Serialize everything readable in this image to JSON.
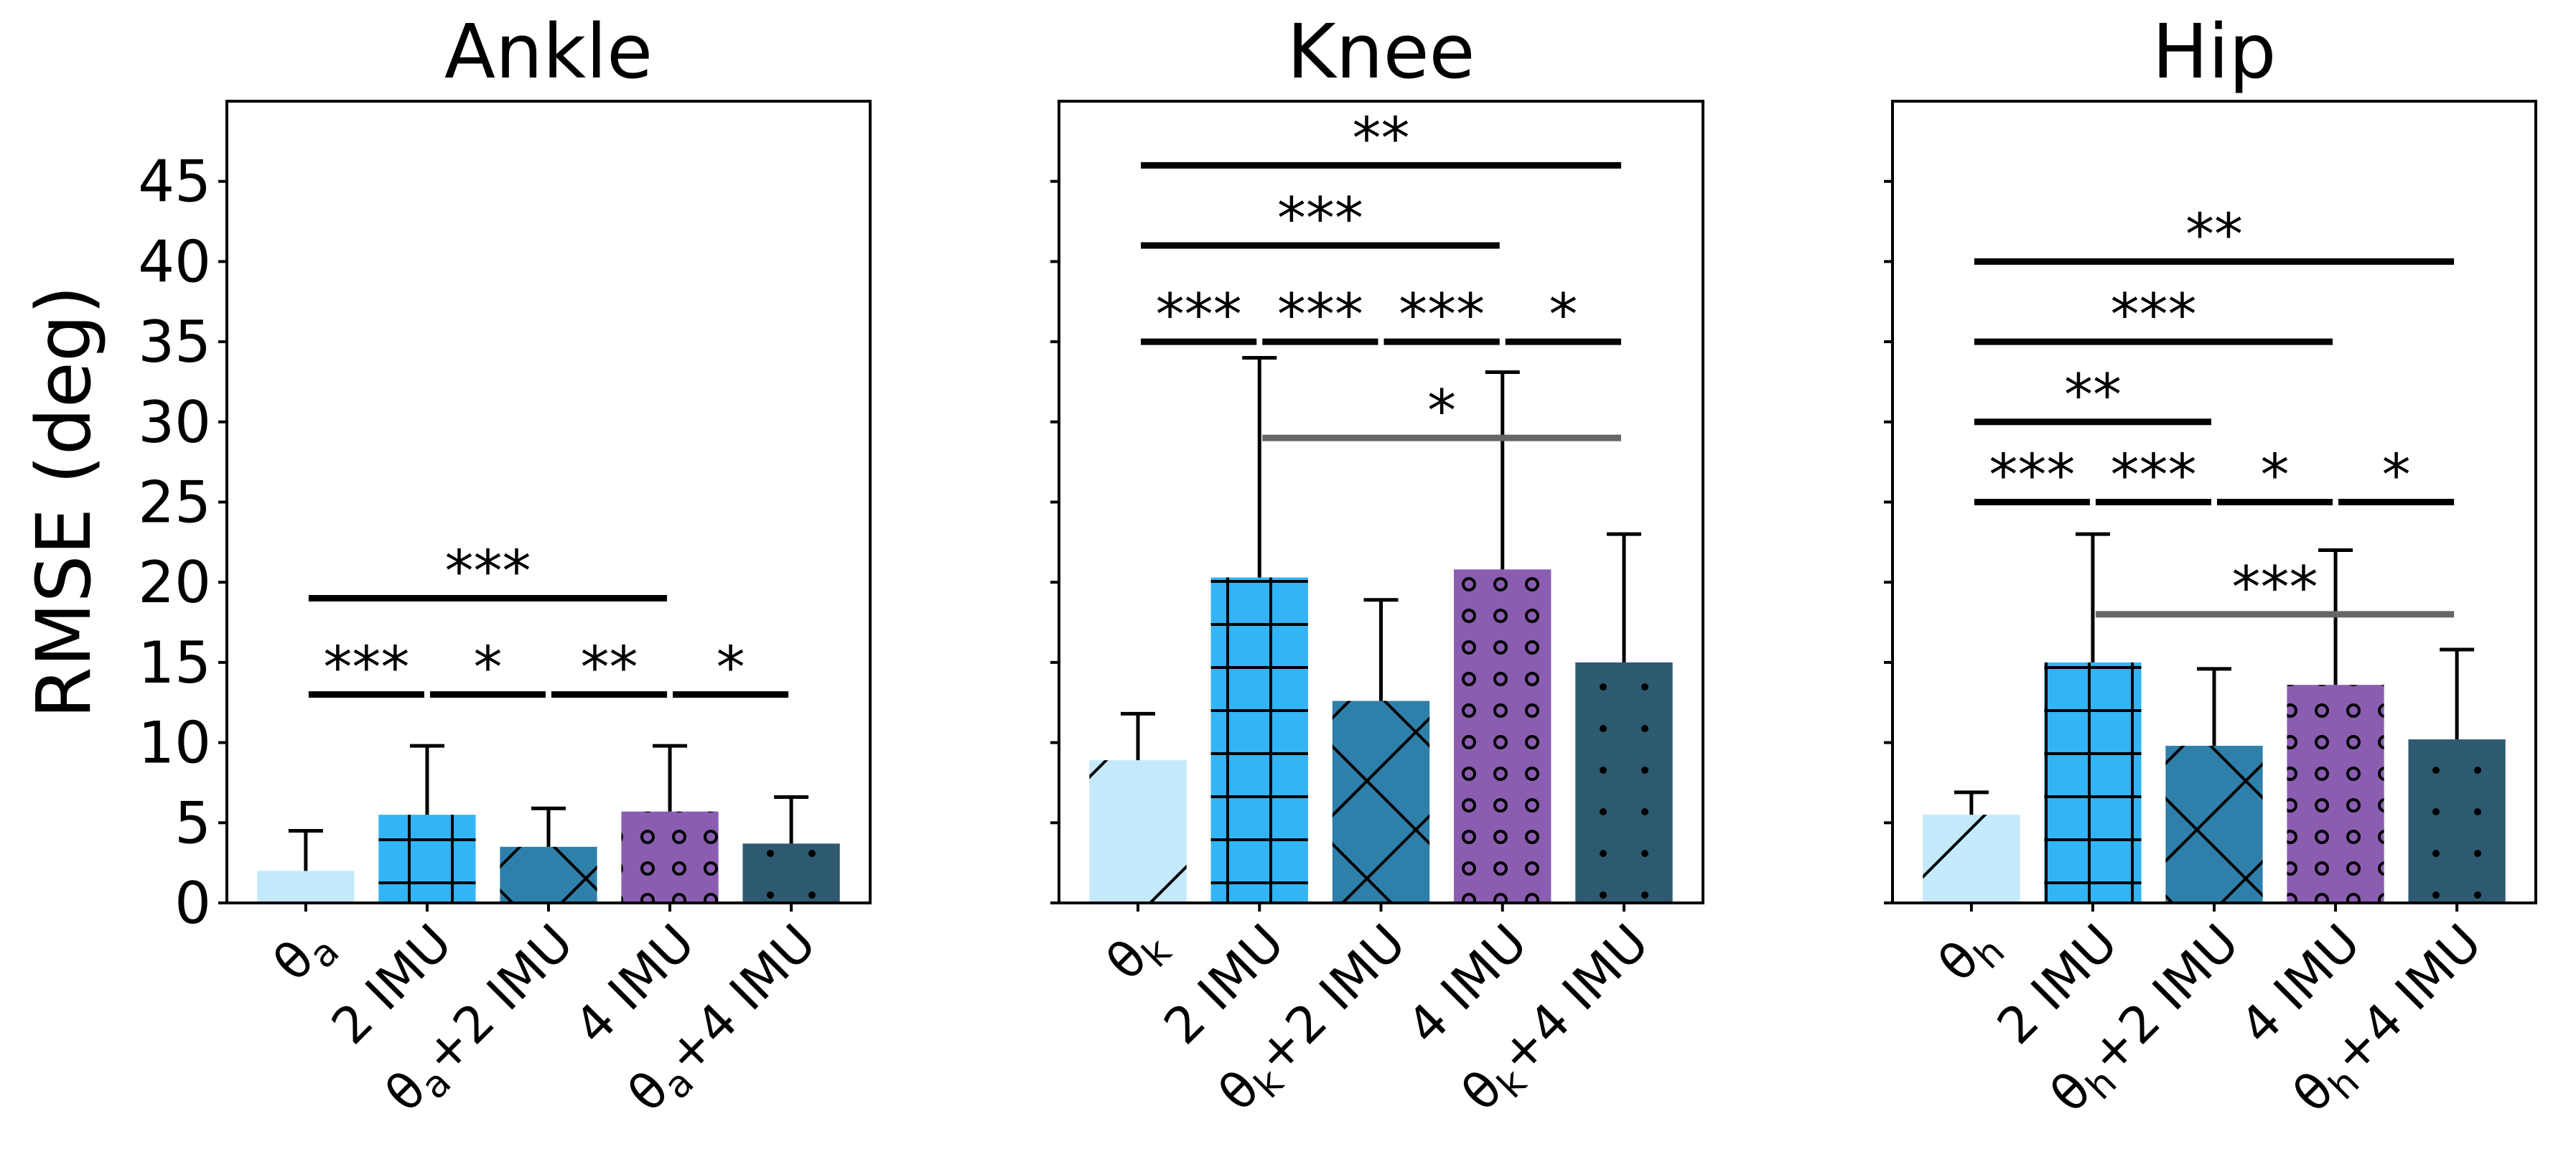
{
  "chart_data": {
    "type": "bar",
    "ylabel": "RMSE (deg)",
    "ylim": [
      0,
      50
    ],
    "yticks": [
      0,
      5,
      10,
      15,
      20,
      25,
      30,
      35,
      40,
      45
    ],
    "colors": [
      "#c4e9fb",
      "#33b5f5",
      "#2e80aa",
      "#8b5db1",
      "#2d5a70"
    ],
    "hatches": [
      "diagonal",
      "grid",
      "cross",
      "circles",
      "dots"
    ],
    "panels": [
      {
        "title": "Ankle",
        "categories": [
          {
            "base": "θ",
            "sub": "a",
            "rest": ""
          },
          {
            "base": "2 IMU",
            "sub": "",
            "rest": ""
          },
          {
            "base": "θ",
            "sub": "a",
            "rest": "+2 IMU"
          },
          {
            "base": "4 IMU",
            "sub": "",
            "rest": ""
          },
          {
            "base": "θ",
            "sub": "a",
            "rest": "+4 IMU"
          }
        ],
        "values": [
          2.0,
          5.5,
          3.5,
          5.7,
          3.7
        ],
        "errors": [
          2.5,
          4.3,
          2.4,
          4.1,
          2.9
        ],
        "significance": [
          {
            "from": 0,
            "to": 1,
            "y": 13,
            "label": "***",
            "color": "#000000"
          },
          {
            "from": 1,
            "to": 2,
            "y": 13,
            "label": "*",
            "color": "#000000"
          },
          {
            "from": 2,
            "to": 3,
            "y": 13,
            "label": "**",
            "color": "#000000"
          },
          {
            "from": 3,
            "to": 4,
            "y": 13,
            "label": "*",
            "color": "#000000"
          },
          {
            "from": 0,
            "to": 3,
            "y": 19,
            "label": "***",
            "color": "#000000"
          }
        ]
      },
      {
        "title": "Knee",
        "categories": [
          {
            "base": "θ",
            "sub": "k",
            "rest": ""
          },
          {
            "base": "2 IMU",
            "sub": "",
            "rest": ""
          },
          {
            "base": "θ",
            "sub": "k",
            "rest": "+2 IMU"
          },
          {
            "base": "4 IMU",
            "sub": "",
            "rest": ""
          },
          {
            "base": "θ",
            "sub": "k",
            "rest": "+4 IMU"
          }
        ],
        "values": [
          8.9,
          20.3,
          12.6,
          20.8,
          15.0
        ],
        "errors": [
          2.9,
          13.7,
          6.3,
          12.3,
          8.0
        ],
        "significance": [
          {
            "from": 1,
            "to": 4,
            "y": 29,
            "label": "*",
            "color": "#666666"
          },
          {
            "from": 0,
            "to": 1,
            "y": 35,
            "label": "***",
            "color": "#000000"
          },
          {
            "from": 1,
            "to": 2,
            "y": 35,
            "label": "***",
            "color": "#000000"
          },
          {
            "from": 2,
            "to": 3,
            "y": 35,
            "label": "***",
            "color": "#000000"
          },
          {
            "from": 3,
            "to": 4,
            "y": 35,
            "label": "*",
            "color": "#000000"
          },
          {
            "from": 0,
            "to": 3,
            "y": 41,
            "label": "***",
            "color": "#000000"
          },
          {
            "from": 0,
            "to": 4,
            "y": 46,
            "label": "**",
            "color": "#000000"
          }
        ]
      },
      {
        "title": "Hip",
        "categories": [
          {
            "base": "θ",
            "sub": "h",
            "rest": ""
          },
          {
            "base": "2 IMU",
            "sub": "",
            "rest": ""
          },
          {
            "base": "θ",
            "sub": "h",
            "rest": "+2 IMU"
          },
          {
            "base": "4 IMU",
            "sub": "",
            "rest": ""
          },
          {
            "base": "θ",
            "sub": "h",
            "rest": "+4 IMU"
          }
        ],
        "values": [
          5.5,
          15.0,
          9.8,
          13.6,
          10.2
        ],
        "errors": [
          1.4,
          8.0,
          4.8,
          8.4,
          5.6
        ],
        "significance": [
          {
            "from": 1,
            "to": 4,
            "y": 18,
            "label": "***",
            "color": "#666666"
          },
          {
            "from": 0,
            "to": 1,
            "y": 25,
            "label": "***",
            "color": "#000000"
          },
          {
            "from": 1,
            "to": 2,
            "y": 25,
            "label": "***",
            "color": "#000000"
          },
          {
            "from": 2,
            "to": 3,
            "y": 25,
            "label": "*",
            "color": "#000000"
          },
          {
            "from": 3,
            "to": 4,
            "y": 25,
            "label": "*",
            "color": "#000000"
          },
          {
            "from": 0,
            "to": 2,
            "y": 30,
            "label": "**",
            "color": "#000000"
          },
          {
            "from": 0,
            "to": 3,
            "y": 35,
            "label": "***",
            "color": "#000000"
          },
          {
            "from": 0,
            "to": 4,
            "y": 40,
            "label": "**",
            "color": "#000000"
          }
        ]
      }
    ]
  }
}
